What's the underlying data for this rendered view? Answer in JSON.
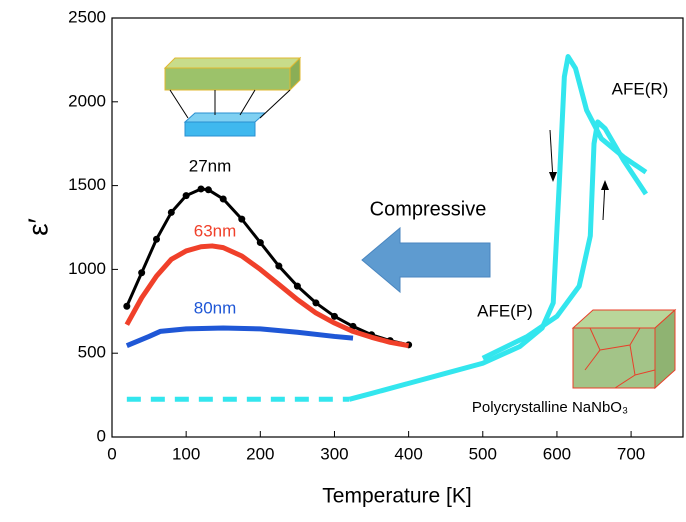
{
  "chart_data": {
    "type": "line",
    "x_label": "Temperature [K]",
    "y_label": "ε′",
    "xlim": [
      0,
      770
    ],
    "ylim": [
      0,
      2500
    ],
    "xticks": [
      0,
      100,
      200,
      300,
      400,
      500,
      600,
      700
    ],
    "yticks": [
      0,
      500,
      1000,
      1500,
      2000,
      2500
    ],
    "series": [
      {
        "name": "27nm",
        "color": "#000000",
        "markers": true,
        "x": [
          20,
          40,
          60,
          80,
          100,
          120,
          130,
          150,
          175,
          200,
          225,
          250,
          275,
          300,
          325,
          350,
          375,
          400
        ],
        "values": [
          780,
          980,
          1180,
          1340,
          1440,
          1480,
          1475,
          1420,
          1300,
          1160,
          1020,
          900,
          800,
          720,
          660,
          610,
          575,
          550
        ]
      },
      {
        "name": "63nm",
        "color": "#f0402a",
        "markers": false,
        "x": [
          20,
          40,
          60,
          80,
          100,
          120,
          135,
          150,
          175,
          200,
          225,
          250,
          275,
          300,
          325,
          350,
          375,
          400
        ],
        "values": [
          670,
          830,
          960,
          1060,
          1110,
          1135,
          1140,
          1130,
          1080,
          1000,
          910,
          820,
          740,
          680,
          630,
          595,
          565,
          545
        ]
      },
      {
        "name": "80nm",
        "color": "#1f57d6",
        "markers": false,
        "x": [
          20,
          50,
          65,
          100,
          150,
          200,
          250,
          300,
          325
        ],
        "values": [
          545,
          600,
          630,
          645,
          650,
          645,
          625,
          600,
          590
        ]
      },
      {
        "color": "#33e6ee",
        "dashed": true,
        "x": [
          20,
          320
        ],
        "values": [
          225,
          225
        ]
      },
      {
        "color": "#33e6ee",
        "dashed": false,
        "x": [
          320,
          350,
          400,
          450,
          500,
          550,
          580,
          595,
          603,
          610,
          615,
          625,
          640,
          660,
          690,
          720
        ],
        "values": [
          225,
          260,
          320,
          380,
          440,
          540,
          650,
          800,
          1500,
          2150,
          2270,
          2200,
          1950,
          1780,
          1670,
          1580
        ]
      },
      {
        "color": "#33e6ee",
        "dashed": false,
        "x": [
          500,
          560,
          600,
          630,
          645,
          650,
          655,
          665,
          690,
          720
        ],
        "values": [
          470,
          600,
          720,
          900,
          1200,
          1750,
          1880,
          1840,
          1650,
          1450
        ]
      }
    ],
    "annotations": [
      "Compressive",
      "AFE(R)",
      "AFE(P)",
      "Polycrystalline NaNbO₃"
    ]
  }
}
